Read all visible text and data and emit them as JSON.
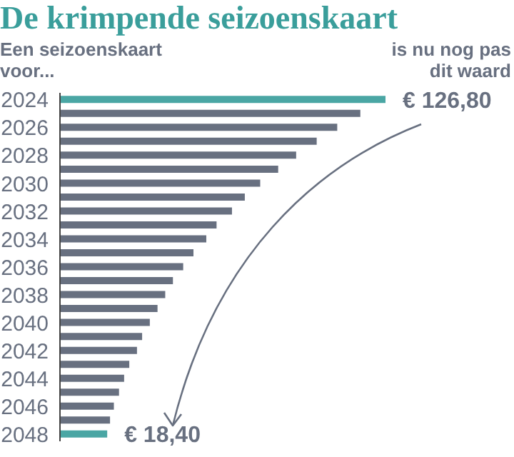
{
  "chart_data": {
    "type": "bar",
    "orientation": "horizontal",
    "title": "De krimpende seizoenskaart",
    "annotations": [
      "Een seizoenskaart voor...",
      "is nu nog pas dit waard"
    ],
    "categories": [
      "2024",
      null,
      "2026",
      null,
      "2028",
      null,
      "2030",
      null,
      "2032",
      null,
      "2034",
      null,
      "2036",
      null,
      "2038",
      null,
      "2040",
      null,
      "2042",
      null,
      "2044",
      null,
      "2046",
      null,
      "2048"
    ],
    "values": [
      126.8,
      117,
      108,
      100,
      92,
      85,
      78,
      72,
      67,
      61,
      57,
      52,
      48,
      44,
      41,
      38,
      35,
      32,
      30,
      27,
      25,
      23,
      21,
      19.5,
      18.4
    ],
    "colors": [
      "#4aa6a4",
      "#687080",
      "#687080",
      "#687080",
      "#687080",
      "#687080",
      "#687080",
      "#687080",
      "#687080",
      "#687080",
      "#687080",
      "#687080",
      "#687080",
      "#687080",
      "#687080",
      "#687080",
      "#687080",
      "#687080",
      "#687080",
      "#687080",
      "#687080",
      "#687080",
      "#687080",
      "#687080",
      "#4aa6a4"
    ],
    "value_labels": [
      "€ 126,80",
      null,
      null,
      null,
      null,
      null,
      null,
      null,
      null,
      null,
      null,
      null,
      null,
      null,
      null,
      null,
      null,
      null,
      null,
      null,
      null,
      null,
      null,
      null,
      "€ 18,40"
    ]
  }
}
